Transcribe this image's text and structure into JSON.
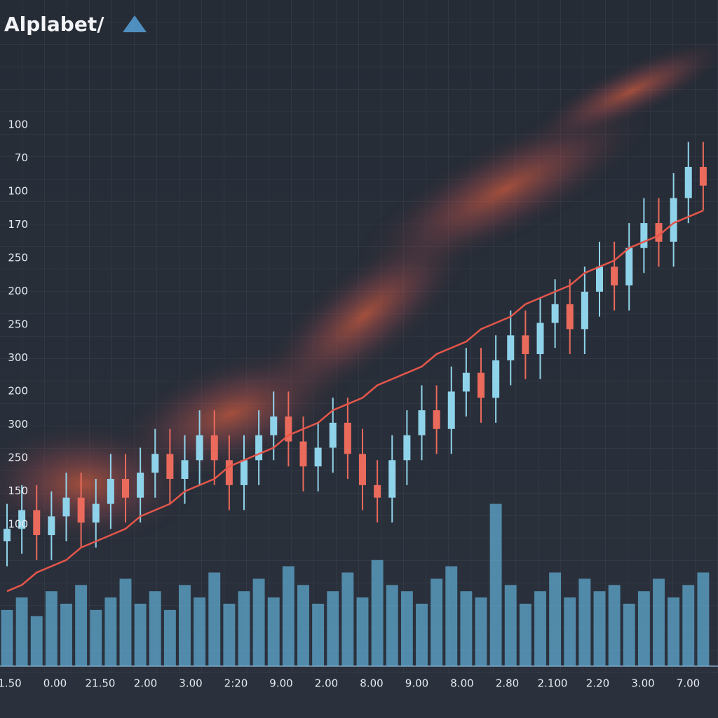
{
  "chart_data": {
    "type": "candlestick",
    "title": "Alplabet/",
    "y_axis_labels": [
      "100",
      "70",
      "100",
      "170",
      "250",
      "200",
      "250",
      "300",
      "200",
      "300",
      "250",
      "150",
      "100"
    ],
    "x_axis_labels": [
      "1.50",
      "0.00",
      "21.50",
      "2.00",
      "3.00",
      "2:20",
      "9.00",
      "2.00",
      "8.00",
      "9.00",
      "8.00",
      "2.80",
      "2.100",
      "2.20",
      "3.00",
      "7.00"
    ],
    "ylim": [
      0,
      100
    ],
    "up_color": "#8fd3ea",
    "down_color": "#ea6a5c",
    "open": [
      20,
      22,
      25,
      21,
      24,
      27,
      23,
      26,
      30,
      27,
      31,
      34,
      30,
      33,
      37,
      33,
      29,
      33,
      37,
      40,
      36,
      32,
      35,
      39,
      34,
      29,
      27,
      33,
      37,
      41,
      38,
      44,
      47,
      43,
      49,
      53,
      50,
      55,
      58,
      54,
      60,
      64,
      61,
      67,
      71,
      68,
      75,
      80
    ],
    "close": [
      22,
      25,
      21,
      24,
      27,
      23,
      26,
      30,
      27,
      31,
      34,
      30,
      33,
      37,
      33,
      29,
      33,
      37,
      40,
      36,
      32,
      35,
      39,
      34,
      29,
      27,
      33,
      37,
      41,
      38,
      44,
      47,
      43,
      49,
      53,
      50,
      55,
      58,
      54,
      60,
      64,
      61,
      67,
      71,
      68,
      75,
      80,
      77
    ],
    "high": [
      26,
      29,
      29,
      28,
      31,
      31,
      30,
      34,
      34,
      35,
      38,
      38,
      37,
      41,
      41,
      37,
      37,
      41,
      44,
      44,
      40,
      39,
      43,
      43,
      38,
      33,
      37,
      41,
      45,
      45,
      48,
      51,
      51,
      53,
      57,
      57,
      59,
      62,
      62,
      64,
      68,
      68,
      71,
      75,
      75,
      79,
      84,
      84
    ],
    "low": [
      16,
      18,
      17,
      17,
      20,
      19,
      19,
      22,
      23,
      23,
      27,
      26,
      26,
      29,
      29,
      25,
      25,
      29,
      33,
      32,
      28,
      28,
      31,
      30,
      25,
      23,
      23,
      29,
      33,
      34,
      34,
      40,
      39,
      39,
      45,
      46,
      46,
      51,
      50,
      50,
      56,
      57,
      57,
      63,
      64,
      64,
      71,
      73
    ],
    "moving_average": {
      "color": "#e5564a",
      "values": [
        12,
        13,
        15,
        16,
        17,
        19,
        20,
        21,
        22,
        24,
        25,
        26,
        28,
        29,
        30,
        32,
        33,
        34,
        35,
        37,
        38,
        39,
        41,
        42,
        43,
        45,
        46,
        47,
        48,
        50,
        51,
        52,
        54,
        55,
        56,
        58,
        59,
        60,
        61,
        63,
        64,
        65,
        67,
        68,
        69,
        71,
        72,
        73
      ]
    },
    "volume": {
      "color": "#5fa9cf",
      "values": [
        9,
        11,
        8,
        12,
        10,
        13,
        9,
        11,
        14,
        10,
        12,
        9,
        13,
        11,
        15,
        10,
        12,
        14,
        11,
        16,
        13,
        10,
        12,
        15,
        11,
        17,
        13,
        12,
        10,
        14,
        16,
        12,
        11,
        26,
        13,
        10,
        12,
        15,
        11,
        14,
        12,
        13,
        10,
        12,
        14,
        11,
        13,
        15
      ]
    }
  }
}
